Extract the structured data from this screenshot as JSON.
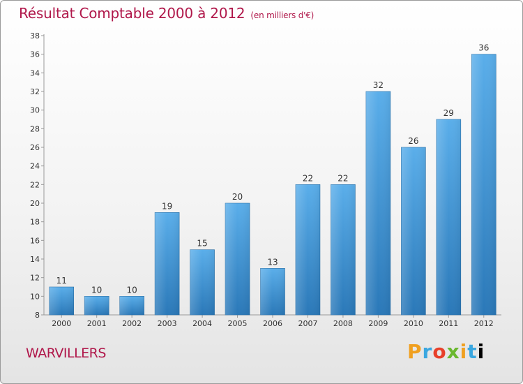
{
  "chart_data": {
    "type": "bar",
    "title": "Résultat Comptable 2000 à 2012",
    "subtitle": "(en milliers d'€)",
    "categories": [
      "2000",
      "2001",
      "2002",
      "2003",
      "2004",
      "2005",
      "2006",
      "2007",
      "2008",
      "2009",
      "2010",
      "2011",
      "2012"
    ],
    "values": [
      11,
      10,
      10,
      19,
      15,
      20,
      13,
      22,
      22,
      32,
      26,
      29,
      36
    ],
    "ylim": [
      8,
      38
    ],
    "yticks": [
      8,
      10,
      12,
      14,
      16,
      18,
      20,
      22,
      24,
      26,
      28,
      30,
      32,
      34,
      36,
      38
    ],
    "xlabel": "",
    "ylabel": "",
    "grid": false,
    "legend": "none"
  },
  "place_name": "WARVILLERS",
  "brand": {
    "letters": [
      "P",
      "r",
      "o",
      "x",
      "i",
      "t",
      "i"
    ]
  },
  "colors": {
    "title": "#b0174a",
    "bar_top": "#5aaeea",
    "bar_bottom": "#2a78b8"
  }
}
